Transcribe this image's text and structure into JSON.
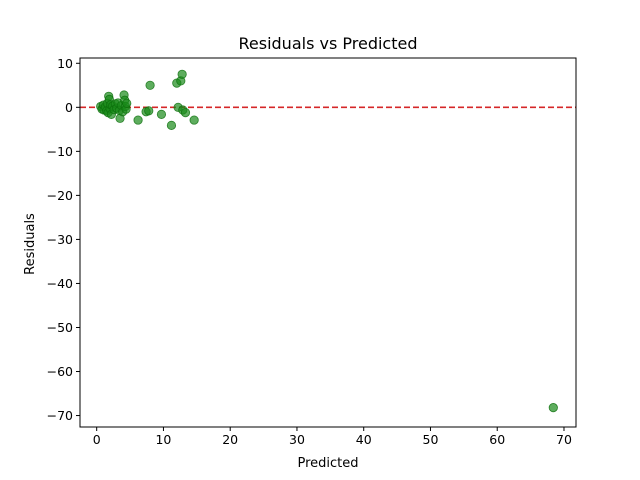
{
  "chart_data": {
    "type": "scatter",
    "title": "Residuals vs Predicted",
    "xlabel": "Predicted",
    "ylabel": "Residuals",
    "xlim": [
      -2.5,
      71.8
    ],
    "ylim": [
      -72.6,
      11.2
    ],
    "xticks": [
      0,
      10,
      20,
      30,
      40,
      50,
      60,
      70
    ],
    "yticks": [
      10,
      0,
      -10,
      -20,
      -30,
      -40,
      -50,
      -60,
      -70
    ],
    "grid": false,
    "point_color": "#1a8a1a",
    "point_edge_color": "#0b6e0b",
    "reference_line": {
      "y": 0,
      "color": "#d62728",
      "style": "dashed"
    },
    "points": [
      {
        "x": 0.6,
        "y": 0.2
      },
      {
        "x": 0.8,
        "y": -0.4
      },
      {
        "x": 1.0,
        "y": 0.5
      },
      {
        "x": 1.1,
        "y": -0.6
      },
      {
        "x": 1.3,
        "y": 0.1
      },
      {
        "x": 1.5,
        "y": -0.8
      },
      {
        "x": 1.6,
        "y": 0.9
      },
      {
        "x": 1.7,
        "y": -1.2
      },
      {
        "x": 1.8,
        "y": 2.5
      },
      {
        "x": 1.9,
        "y": 1.8
      },
      {
        "x": 2.0,
        "y": -0.3
      },
      {
        "x": 2.1,
        "y": 0.6
      },
      {
        "x": 2.2,
        "y": -1.6
      },
      {
        "x": 2.4,
        "y": 0.3
      },
      {
        "x": 2.6,
        "y": -0.5
      },
      {
        "x": 2.8,
        "y": 0.8
      },
      {
        "x": 3.0,
        "y": -0.2
      },
      {
        "x": 3.2,
        "y": 1.0
      },
      {
        "x": 3.4,
        "y": -0.7
      },
      {
        "x": 3.5,
        "y": -2.5
      },
      {
        "x": 3.7,
        "y": 0.4
      },
      {
        "x": 3.9,
        "y": -1.0
      },
      {
        "x": 4.1,
        "y": 2.8
      },
      {
        "x": 4.2,
        "y": 1.6
      },
      {
        "x": 4.3,
        "y": 0.2
      },
      {
        "x": 4.4,
        "y": -0.4
      },
      {
        "x": 4.5,
        "y": 0.9
      },
      {
        "x": 6.2,
        "y": -2.9
      },
      {
        "x": 7.4,
        "y": -1.0
      },
      {
        "x": 7.8,
        "y": -0.8
      },
      {
        "x": 8.0,
        "y": 5.0
      },
      {
        "x": 9.7,
        "y": -1.6
      },
      {
        "x": 11.2,
        "y": -4.1
      },
      {
        "x": 12.0,
        "y": 5.5
      },
      {
        "x": 12.2,
        "y": 0.0
      },
      {
        "x": 12.6,
        "y": 6.0
      },
      {
        "x": 12.9,
        "y": -0.6
      },
      {
        "x": 12.8,
        "y": 7.5
      },
      {
        "x": 13.3,
        "y": -1.2
      },
      {
        "x": 14.6,
        "y": -2.9
      },
      {
        "x": 68.4,
        "y": -68.2
      }
    ]
  }
}
